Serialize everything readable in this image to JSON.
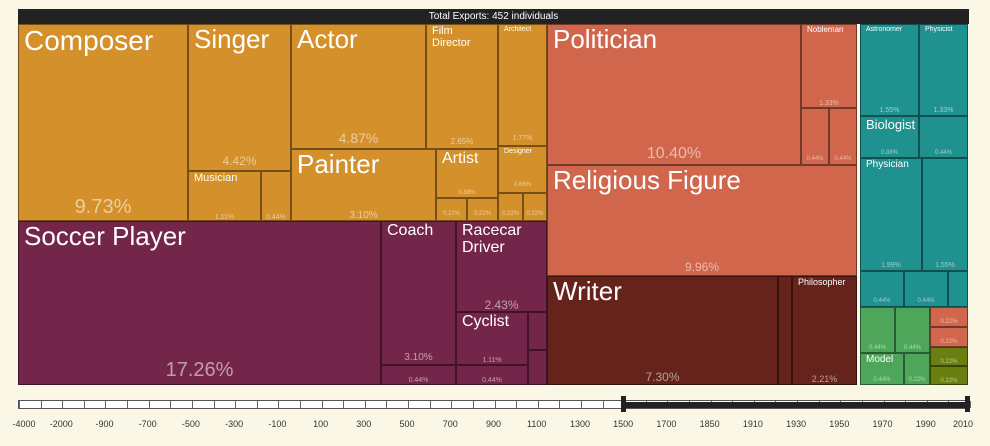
{
  "header": {
    "title": "Total Exports: 452 individuals"
  },
  "chart_data": {
    "type": "treemap",
    "title": "Total Exports: 452 individuals",
    "cells": [
      {
        "label": "Composer",
        "value": "9.73%",
        "color": "#d4902a"
      },
      {
        "label": "Singer",
        "value": "4.42%",
        "color": "#d4902a"
      },
      {
        "label": "Musician",
        "value": "1.11%",
        "color": "#d4902a"
      },
      {
        "label": "",
        "value": "0.44%",
        "color": "#d4902a"
      },
      {
        "label": "Actor",
        "value": "4.87%",
        "color": "#d4902a"
      },
      {
        "label": "Film\nDirector",
        "value": "2.65%",
        "color": "#d4902a"
      },
      {
        "label": "Architect",
        "value": "1.77%",
        "color": "#d4902a"
      },
      {
        "label": "Designer",
        "value": "0.66%",
        "color": "#d4902a"
      },
      {
        "label": "",
        "value": "0.22%",
        "color": "#d4902a"
      },
      {
        "label": "",
        "value": "0.22%",
        "color": "#d4902a"
      },
      {
        "label": "Painter",
        "value": "3.10%",
        "color": "#d4902a"
      },
      {
        "label": "Artist",
        "value": "0.88%",
        "color": "#d4902a"
      },
      {
        "label": "",
        "value": "0.22%",
        "color": "#d4902a"
      },
      {
        "label": "",
        "value": "0.22%",
        "color": "#d4902a"
      },
      {
        "label": "Soccer Player",
        "value": "17.26%",
        "color": "#74264a"
      },
      {
        "label": "Coach",
        "value": "3.10%",
        "color": "#74264a"
      },
      {
        "label": "",
        "value": "0.44%",
        "color": "#74264a"
      },
      {
        "label": "Racecar\nDriver",
        "value": "2.43%",
        "color": "#74264a"
      },
      {
        "label": "Cyclist",
        "value": "1.11%",
        "color": "#74264a"
      },
      {
        "label": "",
        "value": "0.44%",
        "color": "#74264a"
      },
      {
        "label": "",
        "value": "",
        "color": "#74264a"
      },
      {
        "label": "",
        "value": "",
        "color": "#74264a"
      },
      {
        "label": "Politician",
        "value": "10.40%",
        "color": "#d0664b"
      },
      {
        "label": "Nobleman",
        "value": "1.33%",
        "color": "#d0664b"
      },
      {
        "label": "",
        "value": "0.44%",
        "color": "#d0664b"
      },
      {
        "label": "",
        "value": "0.44%",
        "color": "#d0664b"
      },
      {
        "label": "Religious Figure",
        "value": "9.96%",
        "color": "#d0664b"
      },
      {
        "label": "Writer",
        "value": "7.30%",
        "color": "#65231b"
      },
      {
        "label": "",
        "value": "",
        "color": "#65231b"
      },
      {
        "label": "Philosopher",
        "value": "2.21%",
        "color": "#65231b"
      },
      {
        "label": "Astronomer",
        "value": "1.55%",
        "color": "#1f9290"
      },
      {
        "label": "Physicist",
        "value": "1.33%",
        "color": "#1f9290"
      },
      {
        "label": "Biologist",
        "value": "0.88%",
        "color": "#1f9290"
      },
      {
        "label": "",
        "value": "0.44%",
        "color": "#1f9290"
      },
      {
        "label": "Physician",
        "value": "1.99%",
        "color": "#1f9290"
      },
      {
        "label": "",
        "value": "1.55%",
        "color": "#1f9290"
      },
      {
        "label": "",
        "value": "0.44%",
        "color": "#1f9290"
      },
      {
        "label": "",
        "value": "0.44%",
        "color": "#1f9290"
      },
      {
        "label": "",
        "value": "",
        "color": "#1f9290"
      },
      {
        "label": "",
        "value": "0.44%",
        "color": "#4ea65a"
      },
      {
        "label": "",
        "value": "0.44%",
        "color": "#4ea65a"
      },
      {
        "label": "Model",
        "value": "0.44%",
        "color": "#4ea65a"
      },
      {
        "label": "",
        "value": "0.22%",
        "color": "#4ea65a"
      },
      {
        "label": "",
        "value": "0.22%",
        "color": "#d0664b"
      },
      {
        "label": "",
        "value": "0.22%",
        "color": "#d0664b"
      },
      {
        "label": "",
        "value": "0.22%",
        "color": "#6a7f10"
      },
      {
        "label": "",
        "value": "0.22%",
        "color": "#6a7f10"
      }
    ]
  },
  "timeline": {
    "ticks": [
      "-4000",
      "-2000",
      "-900",
      "-700",
      "-500",
      "-300",
      "-100",
      "100",
      "300",
      "500",
      "700",
      "900",
      "1100",
      "1300",
      "1500",
      "1700",
      "1850",
      "1910",
      "1930",
      "1950",
      "1970",
      "1990",
      "2010"
    ],
    "range_start": "1500",
    "range_end": "2010"
  }
}
